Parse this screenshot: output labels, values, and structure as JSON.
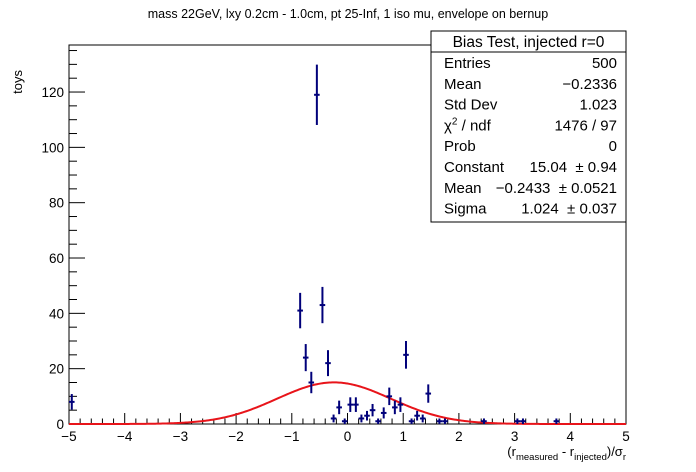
{
  "chart_data": {
    "type": "scatter",
    "title": "mass 22GeV, lxy 0.2cm - 1.0cm, pt 25-Inf, 1 iso mu, envelope on bernup",
    "ylabel": "toys",
    "xlabel_parts": {
      "open": "(r",
      "sub1": "measured",
      "mid": " - r",
      "sub2": "injected",
      "close": ")/σ",
      "sub3": "r"
    },
    "xlim": [
      -5,
      5
    ],
    "ylim": [
      0,
      137
    ],
    "x_ticks": [
      "−5",
      "−4",
      "−3",
      "−2",
      "−1",
      "0",
      "1",
      "2",
      "3",
      "4",
      "5"
    ],
    "y_ticks": [
      "0",
      "20",
      "40",
      "60",
      "80",
      "100",
      "120"
    ],
    "x_tick_values": [
      -5,
      -4,
      -3,
      -2,
      -1,
      0,
      1,
      2,
      3,
      4,
      5
    ],
    "y_tick_values": [
      0,
      20,
      40,
      60,
      80,
      100,
      120
    ],
    "bin_width": 0.1,
    "histogram": [
      {
        "x": -4.95,
        "y": 8
      },
      {
        "x": -0.85,
        "y": 41
      },
      {
        "x": -0.75,
        "y": 24
      },
      {
        "x": -0.65,
        "y": 15
      },
      {
        "x": -0.55,
        "y": 119
      },
      {
        "x": -0.45,
        "y": 43
      },
      {
        "x": -0.35,
        "y": 22
      },
      {
        "x": -0.25,
        "y": 2
      },
      {
        "x": -0.15,
        "y": 6
      },
      {
        "x": -0.05,
        "y": 1
      },
      {
        "x": 0.05,
        "y": 7
      },
      {
        "x": 0.15,
        "y": 7
      },
      {
        "x": 0.25,
        "y": 2
      },
      {
        "x": 0.35,
        "y": 3
      },
      {
        "x": 0.45,
        "y": 5
      },
      {
        "x": 0.55,
        "y": 1
      },
      {
        "x": 0.65,
        "y": 4
      },
      {
        "x": 0.75,
        "y": 10
      },
      {
        "x": 0.85,
        "y": 6
      },
      {
        "x": 0.95,
        "y": 7
      },
      {
        "x": 1.05,
        "y": 25
      },
      {
        "x": 1.15,
        "y": 1
      },
      {
        "x": 1.25,
        "y": 3
      },
      {
        "x": 1.35,
        "y": 2
      },
      {
        "x": 1.45,
        "y": 11
      },
      {
        "x": 1.65,
        "y": 1
      },
      {
        "x": 1.75,
        "y": 1
      },
      {
        "x": 2.45,
        "y": 1
      },
      {
        "x": 3.05,
        "y": 1
      },
      {
        "x": 3.15,
        "y": 1
      },
      {
        "x": 3.75,
        "y": 1
      }
    ],
    "fit": {
      "function": "gaus",
      "constant": 15.04,
      "mean": -0.2433,
      "sigma": 1.024,
      "color": "#e8141a"
    },
    "colors": {
      "markers": "#00007a",
      "fit": "#e8141a",
      "axes": "#000000"
    },
    "legend_placement": "top-right",
    "grid": false
  },
  "stats_box": {
    "title": "Bias Test, injected r=0",
    "rows": [
      {
        "label": "Entries",
        "value": "500"
      },
      {
        "label": "Mean",
        "value": "−0.2336"
      },
      {
        "label": "Std Dev",
        "value": "1.023"
      },
      {
        "label_parts": {
          "main": "χ",
          "sup": "2",
          "rest": " / ndf"
        },
        "value": "1476 / 97"
      },
      {
        "label": "Prob",
        "value": "0"
      },
      {
        "label": "Constant",
        "value": "15.04  ± 0.94"
      },
      {
        "label": "Mean",
        "value": "−0.2433  ± 0.0521"
      },
      {
        "label": "Sigma",
        "value": "1.024  ± 0.037"
      }
    ]
  }
}
